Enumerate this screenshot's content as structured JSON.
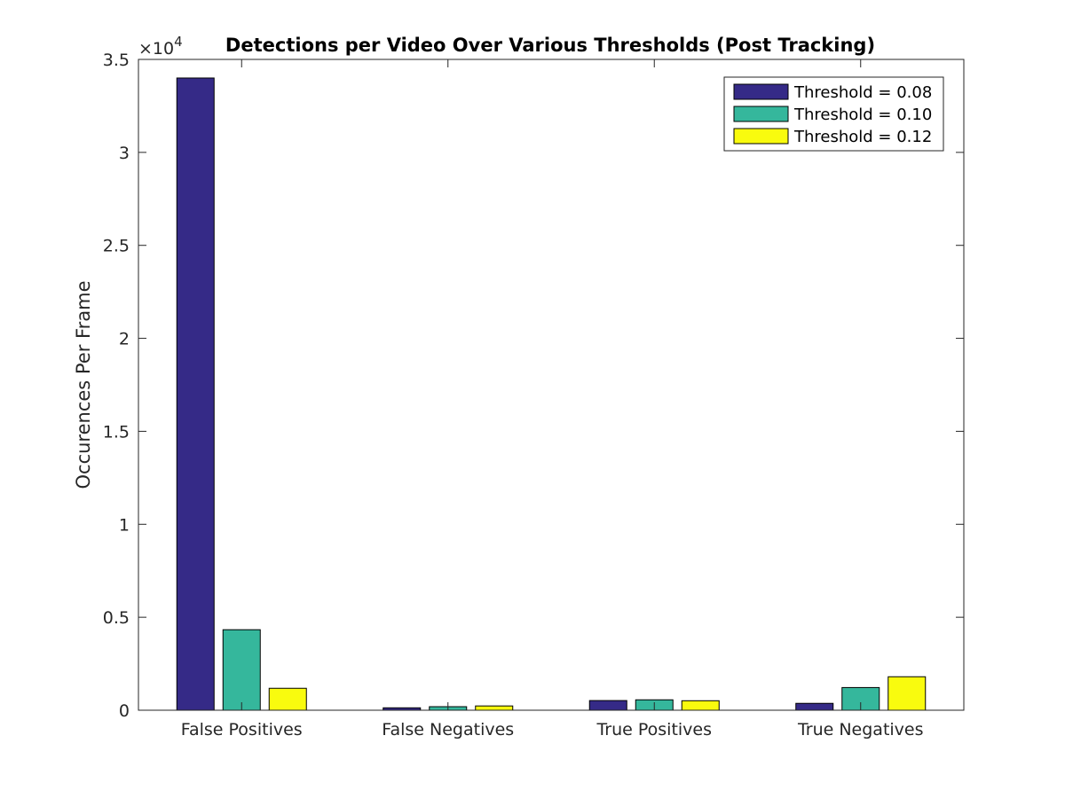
{
  "chart_data": {
    "type": "bar",
    "title": "Detections per Video Over Various Thresholds (Post Tracking)",
    "xlabel": "",
    "ylabel": "Occurences Per Frame",
    "y_exponent_label": "×10",
    "y_exponent_power": "4",
    "categories": [
      "False Positives",
      "False Negatives",
      "True Positives",
      "True Negatives"
    ],
    "series": [
      {
        "name": "Threshold = 0.08",
        "color": "#352a87",
        "values": [
          34000,
          130,
          520,
          370
        ]
      },
      {
        "name": "Threshold = 0.10",
        "color": "#35b79c",
        "values": [
          4330,
          190,
          560,
          1220
        ]
      },
      {
        "name": "Threshold = 0.12",
        "color": "#f9fb0e",
        "values": [
          1180,
          230,
          510,
          1800
        ]
      }
    ],
    "ylim": [
      0,
      35000
    ],
    "yticks": [
      0,
      5000,
      10000,
      15000,
      20000,
      25000,
      30000,
      35000
    ],
    "ytick_labels": [
      "0",
      "0.5",
      "1",
      "1.5",
      "2",
      "2.5",
      "3",
      "3.5"
    ],
    "grid": false,
    "legend_position": "top-right"
  }
}
